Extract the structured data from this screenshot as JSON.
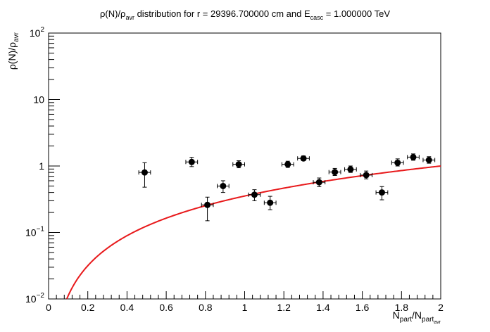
{
  "chart_data": {
    "type": "scatter",
    "title": {
      "p1": "ρ(N)/ρ",
      "p1_sub": "avr",
      "p2": " distribution for r = 29396.700000 cm and E",
      "p2_sub": "casc",
      "p3": " = 1.000000 TeV"
    },
    "xlabel": {
      "main": "N",
      "sub1": "part",
      "mid": "/N",
      "sub2": "part",
      "subsub": "avr"
    },
    "ylabel": {
      "main": "ρ(N)/ρ",
      "sub": "avr"
    },
    "xlim": [
      0,
      2
    ],
    "ylim": [
      0.01,
      100
    ],
    "y_scale": "log",
    "grid": false,
    "x_ticks": [
      {
        "v": 0,
        "label": "0"
      },
      {
        "v": 0.2,
        "label": "0.2"
      },
      {
        "v": 0.4,
        "label": "0.4"
      },
      {
        "v": 0.6,
        "label": "0.6"
      },
      {
        "v": 0.8,
        "label": "0.8"
      },
      {
        "v": 1,
        "label": "1"
      },
      {
        "v": 1.2,
        "label": "1.2"
      },
      {
        "v": 1.4,
        "label": "1.4"
      },
      {
        "v": 1.6,
        "label": "1.6"
      },
      {
        "v": 1.8,
        "label": "1.8"
      },
      {
        "v": 2,
        "label": "2"
      }
    ],
    "y_ticks": [
      {
        "v": 0.01,
        "base": "10",
        "exp": "−2"
      },
      {
        "v": 0.1,
        "base": "10",
        "exp": "−1"
      },
      {
        "v": 1,
        "base": "1",
        "exp": ""
      },
      {
        "v": 10,
        "base": "10",
        "exp": ""
      },
      {
        "v": 100,
        "base": "10",
        "exp": "2"
      }
    ],
    "points": [
      {
        "x": 0.49,
        "xerr": 0.03,
        "y": 0.8,
        "ylo": 0.48,
        "yhi": 1.12
      },
      {
        "x": 0.73,
        "xerr": 0.03,
        "y": 1.15,
        "ylo": 0.98,
        "yhi": 1.35
      },
      {
        "x": 0.81,
        "xerr": 0.03,
        "y": 0.26,
        "ylo": 0.15,
        "yhi": 0.34
      },
      {
        "x": 0.89,
        "xerr": 0.03,
        "y": 0.5,
        "ylo": 0.4,
        "yhi": 0.6
      },
      {
        "x": 0.97,
        "xerr": 0.03,
        "y": 1.06,
        "ylo": 0.94,
        "yhi": 1.2
      },
      {
        "x": 1.05,
        "xerr": 0.03,
        "y": 0.37,
        "ylo": 0.3,
        "yhi": 0.44
      },
      {
        "x": 1.13,
        "xerr": 0.03,
        "y": 0.28,
        "ylo": 0.22,
        "yhi": 0.35
      },
      {
        "x": 1.22,
        "xerr": 0.03,
        "y": 1.06,
        "ylo": 0.95,
        "yhi": 1.18
      },
      {
        "x": 1.3,
        "xerr": 0.03,
        "y": 1.3,
        "ylo": 1.2,
        "yhi": 1.42
      },
      {
        "x": 1.38,
        "xerr": 0.03,
        "y": 0.57,
        "ylo": 0.49,
        "yhi": 0.66
      },
      {
        "x": 1.46,
        "xerr": 0.03,
        "y": 0.81,
        "ylo": 0.72,
        "yhi": 0.92
      },
      {
        "x": 1.54,
        "xerr": 0.03,
        "y": 0.89,
        "ylo": 0.8,
        "yhi": 1.0
      },
      {
        "x": 1.62,
        "xerr": 0.03,
        "y": 0.73,
        "ylo": 0.64,
        "yhi": 0.84
      },
      {
        "x": 1.7,
        "xerr": 0.03,
        "y": 0.4,
        "ylo": 0.31,
        "yhi": 0.49
      },
      {
        "x": 1.78,
        "xerr": 0.03,
        "y": 1.12,
        "ylo": 1.0,
        "yhi": 1.28
      },
      {
        "x": 1.86,
        "xerr": 0.03,
        "y": 1.36,
        "ylo": 1.22,
        "yhi": 1.52
      },
      {
        "x": 1.94,
        "xerr": 0.03,
        "y": 1.23,
        "ylo": 1.1,
        "yhi": 1.38
      }
    ],
    "curve": {
      "color": "#e8191b",
      "function": "y = x^1.5 / 2^1.5",
      "x_range": [
        0.05,
        2
      ]
    },
    "marker_color": "#000000"
  }
}
